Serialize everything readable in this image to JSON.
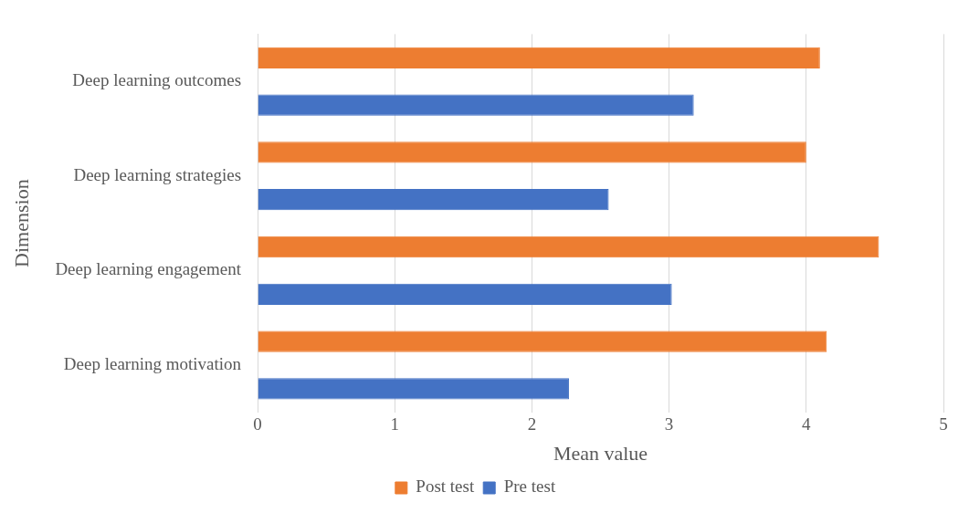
{
  "chart_data": {
    "type": "bar",
    "orientation": "horizontal",
    "xlabel": "Mean value",
    "ylabel": "Dimension",
    "categories": [
      "Deep learning outcomes",
      "Deep learning strategies",
      "Deep learning engagement",
      "Deep learning motivation"
    ],
    "series": [
      {
        "name": "Post test",
        "color": "#ed7d31",
        "values": [
          4.1,
          4.0,
          4.53,
          4.15
        ]
      },
      {
        "name": "Pre test",
        "color": "#4472c4",
        "values": [
          3.18,
          2.56,
          3.02,
          2.27
        ]
      }
    ],
    "xlim": [
      0,
      5
    ],
    "xticks": [
      0,
      1,
      2,
      3,
      4,
      5
    ],
    "grid": "x",
    "legend": "bottom"
  }
}
